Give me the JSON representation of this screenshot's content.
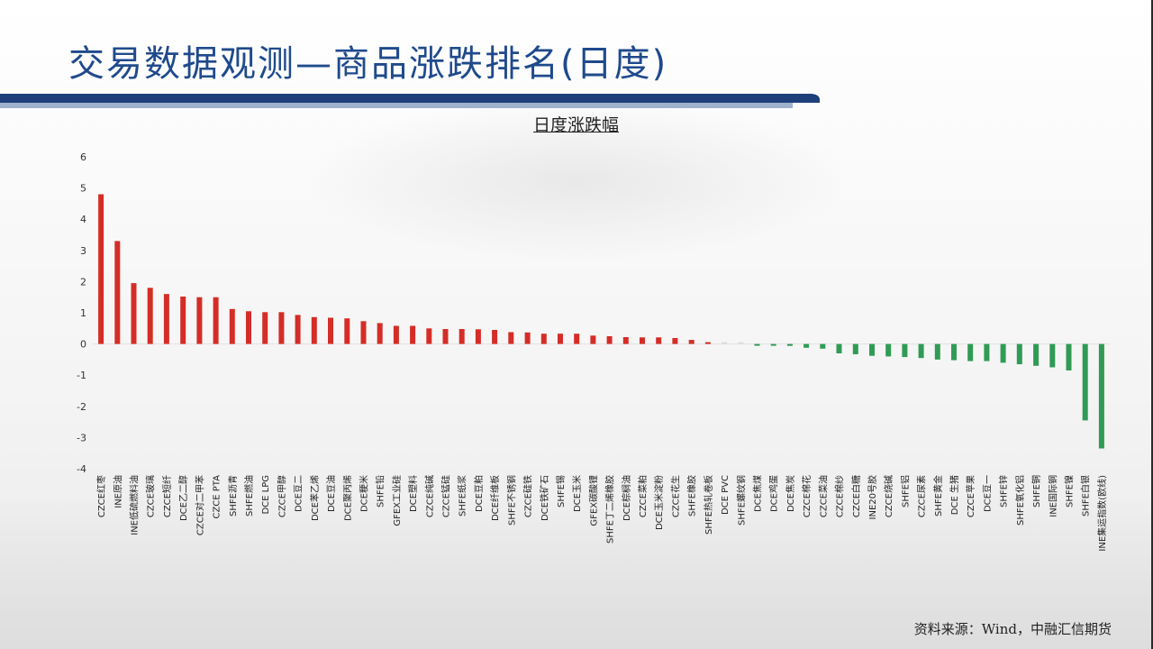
{
  "page": {
    "title": "交易数据观测—商品涨跌排名(日度)",
    "source": "资料来源：Wind，中融汇信期货"
  },
  "colors": {
    "up": "#d42d27",
    "down": "#2f9b55",
    "title": "#1f4a8c"
  },
  "chart_data": {
    "type": "bar",
    "title": "日度涨跌幅",
    "xlabel": "",
    "ylabel": "",
    "ylim": [
      -4,
      6
    ],
    "yticks": [
      -4,
      -3,
      -2,
      -1,
      0,
      1,
      2,
      3,
      4,
      5,
      6
    ],
    "grid": false,
    "categories": [
      "CZCE红枣",
      "INE原油",
      "INE低硫燃料油",
      "CZCE玻璃",
      "CZCE短纤",
      "DCE乙二醇",
      "CZCE对二甲苯",
      "CZCE PTA",
      "SHFE沥青",
      "SHFE燃油",
      "DCE LPG",
      "CZCE甲醇",
      "DCE豆二",
      "DCE苯乙烯",
      "DCE豆油",
      "DCE聚丙烯",
      "DCE粳米",
      "SHFE铅",
      "GFEX工业硅",
      "DCE塑料",
      "CZCE纯碱",
      "CZCE锰硅",
      "SHFE纸浆",
      "DCE豆粕",
      "DCE纤维板",
      "SHFE不锈钢",
      "CZCE硅铁",
      "DCE铁矿石",
      "SHFE锡",
      "DCE玉米",
      "GFEX碳酸锂",
      "SHFE丁二烯橡胶",
      "DCE棕榈油",
      "CZCE菜粕",
      "DCE玉米淀粉",
      "CZCE花生",
      "SHFE橡胶",
      "SHFE热轧卷板",
      "DCE PVC",
      "SHFE螺纹钢",
      "DCE焦煤",
      "DCE鸡蛋",
      "DCE焦炭",
      "CZCE棉花",
      "CZCE菜油",
      "CZCE棉纱",
      "CZCE白糖",
      "INE20号胶",
      "CZCE烧碱",
      "SHFE铝",
      "CZCE尿素",
      "SHFE黄金",
      "DCE 生猪",
      "CZCE苹果",
      "DCE豆一",
      "SHFE锌",
      "SHFE氧化铝",
      "SHFE铜",
      "INE国际铜",
      "SHFE镍",
      "SHFE白银",
      "INE集运指数(欧线)"
    ],
    "values": [
      4.8,
      3.3,
      1.95,
      1.8,
      1.6,
      1.52,
      1.5,
      1.5,
      1.12,
      1.05,
      1.02,
      1.02,
      0.93,
      0.86,
      0.84,
      0.82,
      0.73,
      0.67,
      0.58,
      0.58,
      0.5,
      0.48,
      0.48,
      0.47,
      0.45,
      0.38,
      0.37,
      0.33,
      0.33,
      0.33,
      0.27,
      0.25,
      0.22,
      0.21,
      0.21,
      0.19,
      0.13,
      0.02,
      0.0,
      0.0,
      -0.01,
      -0.03,
      -0.06,
      -0.12,
      -0.15,
      -0.3,
      -0.33,
      -0.38,
      -0.4,
      -0.42,
      -0.45,
      -0.5,
      -0.52,
      -0.55,
      -0.55,
      -0.6,
      -0.65,
      -0.7,
      -0.75,
      -0.85,
      -2.45,
      -3.35
    ]
  }
}
